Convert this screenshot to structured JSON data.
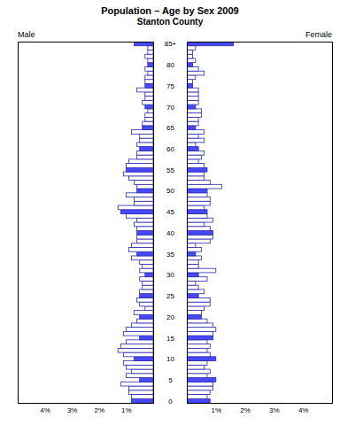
{
  "chart_data": {
    "type": "bar",
    "orientation": "horizontal",
    "title": "Population – Age by Sex 2009",
    "subtitle": "Stanton County",
    "categories": [
      "0",
      null,
      null,
      null,
      null,
      "5",
      null,
      null,
      null,
      null,
      "10",
      null,
      null,
      null,
      null,
      "15",
      null,
      null,
      null,
      null,
      "20",
      null,
      null,
      null,
      null,
      "25",
      null,
      null,
      null,
      null,
      "30",
      null,
      null,
      null,
      null,
      "35",
      null,
      null,
      null,
      null,
      "40",
      null,
      null,
      null,
      null,
      "45",
      null,
      null,
      null,
      null,
      "50",
      null,
      null,
      null,
      null,
      "55",
      null,
      null,
      null,
      null,
      "60",
      null,
      null,
      null,
      null,
      "65",
      null,
      null,
      null,
      null,
      "70",
      null,
      null,
      null,
      null,
      "75",
      null,
      null,
      null,
      null,
      "80",
      null,
      null,
      null,
      null,
      "85+"
    ],
    "series": [
      {
        "name": "Male",
        "values": [
          0.8,
          0.8,
          0.9,
          0.9,
          1.2,
          0.5,
          1.0,
          0.8,
          1.0,
          1.1,
          0.7,
          1.1,
          1.3,
          1.2,
          1.0,
          0.5,
          1.1,
          1.0,
          0.8,
          0.6,
          0.5,
          0.7,
          0.3,
          0.5,
          0.6,
          0.5,
          0.5,
          0.4,
          0.4,
          0.5,
          0.3,
          0.5,
          0.4,
          0.5,
          0.8,
          0.6,
          0.9,
          0.8,
          0.6,
          0.6,
          0.6,
          0.6,
          0.7,
          0.6,
          1.0,
          1.2,
          1.3,
          0.7,
          0.7,
          1.0,
          0.6,
          0.6,
          0.7,
          0.9,
          1.1,
          1.0,
          1.0,
          0.9,
          0.6,
          0.6,
          0.5,
          0.6,
          0.5,
          0.5,
          0.8,
          0.4,
          0.4,
          0.3,
          0.3,
          0.2,
          0.3,
          0.4,
          0.3,
          0.3,
          0.6,
          0.3,
          0.3,
          0.3,
          0.2,
          0.3,
          0.2,
          0.2,
          0.3,
          0.2,
          0.2,
          0.7
        ],
        "colors": [
          "#4848ff",
          "#ffffff",
          "#ffffff",
          "#ffffff",
          "#ffffff",
          "#4848ff",
          "#ffffff",
          "#ffffff",
          "#ffffff",
          "#ffffff",
          "#4848ff",
          "#ffffff",
          "#ffffff",
          "#ffffff",
          "#ffffff",
          "#4848ff",
          "#ffffff",
          "#ffffff",
          "#ffffff",
          "#ffffff",
          "#4848ff",
          "#ffffff",
          "#ffffff",
          "#ffffff",
          "#ffffff",
          "#4848ff",
          "#ffffff",
          "#ffffff",
          "#ffffff",
          "#ffffff",
          "#4848ff",
          "#ffffff",
          "#ffffff",
          "#ffffff",
          "#ffffff",
          "#4848ff",
          "#ffffff",
          "#ffffff",
          "#ffffff",
          "#ffffff",
          "#4848ff",
          "#ffffff",
          "#ffffff",
          "#ffffff",
          "#ffffff",
          "#4848ff",
          "#ffffff",
          "#ffffff",
          "#ffffff",
          "#ffffff",
          "#4848ff",
          "#ffffff",
          "#ffffff",
          "#ffffff",
          "#ffffff",
          "#4848ff",
          "#ffffff",
          "#ffffff",
          "#ffffff",
          "#ffffff",
          "#4848ff",
          "#ffffff",
          "#ffffff",
          "#ffffff",
          "#ffffff",
          "#4848ff",
          "#ffffff",
          "#ffffff",
          "#ffffff",
          "#ffffff",
          "#4848ff",
          "#ffffff",
          "#ffffff",
          "#ffffff",
          "#ffffff",
          "#4848ff",
          "#ffffff",
          "#ffffff",
          "#ffffff",
          "#ffffff",
          "#4848ff",
          "#ffffff",
          "#ffffff",
          "#ffffff",
          "#ffffff",
          "#4848ff"
        ]
      },
      {
        "name": "Female",
        "values": [
          0.8,
          0.7,
          0.8,
          0.9,
          0.9,
          1.0,
          0.7,
          0.8,
          0.6,
          0.7,
          1.0,
          0.8,
          0.7,
          0.8,
          0.7,
          0.9,
          0.9,
          1.0,
          0.9,
          0.7,
          0.5,
          0.5,
          0.6,
          0.8,
          0.8,
          0.4,
          0.6,
          0.4,
          0.3,
          0.7,
          0.4,
          1.0,
          0.4,
          0.4,
          0.5,
          0.3,
          0.5,
          0.3,
          0.8,
          0.9,
          0.9,
          0.8,
          0.6,
          0.9,
          0.7,
          0.7,
          0.6,
          0.8,
          0.8,
          0.7,
          0.7,
          1.2,
          0.8,
          0.6,
          0.6,
          0.7,
          0.6,
          0.4,
          0.5,
          0.6,
          0.4,
          0.3,
          0.6,
          0.4,
          0.6,
          0.3,
          0.4,
          0.4,
          0.5,
          0.5,
          0.3,
          0.4,
          0.4,
          0.4,
          0.4,
          0.2,
          0.2,
          0.3,
          0.6,
          0.4,
          0.2,
          0.3,
          0.2,
          0.2,
          0.3,
          1.6
        ],
        "colors": [
          "#4848ff",
          "#ffffff",
          "#ffffff",
          "#ffffff",
          "#ffffff",
          "#4848ff",
          "#ffffff",
          "#ffffff",
          "#ffffff",
          "#ffffff",
          "#4848ff",
          "#ffffff",
          "#ffffff",
          "#ffffff",
          "#ffffff",
          "#4848ff",
          "#ffffff",
          "#ffffff",
          "#ffffff",
          "#ffffff",
          "#4848ff",
          "#ffffff",
          "#ffffff",
          "#ffffff",
          "#ffffff",
          "#4848ff",
          "#ffffff",
          "#ffffff",
          "#ffffff",
          "#ffffff",
          "#4848ff",
          "#ffffff",
          "#ffffff",
          "#ffffff",
          "#ffffff",
          "#4848ff",
          "#ffffff",
          "#ffffff",
          "#ffffff",
          "#ffffff",
          "#4848ff",
          "#ffffff",
          "#ffffff",
          "#ffffff",
          "#ffffff",
          "#4848ff",
          "#ffffff",
          "#ffffff",
          "#ffffff",
          "#ffffff",
          "#4848ff",
          "#ffffff",
          "#ffffff",
          "#ffffff",
          "#ffffff",
          "#4848ff",
          "#ffffff",
          "#ffffff",
          "#ffffff",
          "#ffffff",
          "#4848ff",
          "#ffffff",
          "#ffffff",
          "#ffffff",
          "#ffffff",
          "#4848ff",
          "#ffffff",
          "#ffffff",
          "#ffffff",
          "#ffffff",
          "#4848ff",
          "#ffffff",
          "#ffffff",
          "#ffffff",
          "#ffffff",
          "#4848ff",
          "#ffffff",
          "#ffffff",
          "#ffffff",
          "#ffffff",
          "#4848ff",
          "#ffffff",
          "#ffffff",
          "#ffffff",
          "#ffffff",
          "#4848ff"
        ]
      }
    ],
    "xlim": [
      0,
      5
    ],
    "xticks": [
      {
        "value": 1,
        "label": "1%"
      },
      {
        "value": 2,
        "label": "2%"
      },
      {
        "value": 3,
        "label": "3%"
      },
      {
        "value": 4,
        "label": "4%"
      }
    ]
  }
}
